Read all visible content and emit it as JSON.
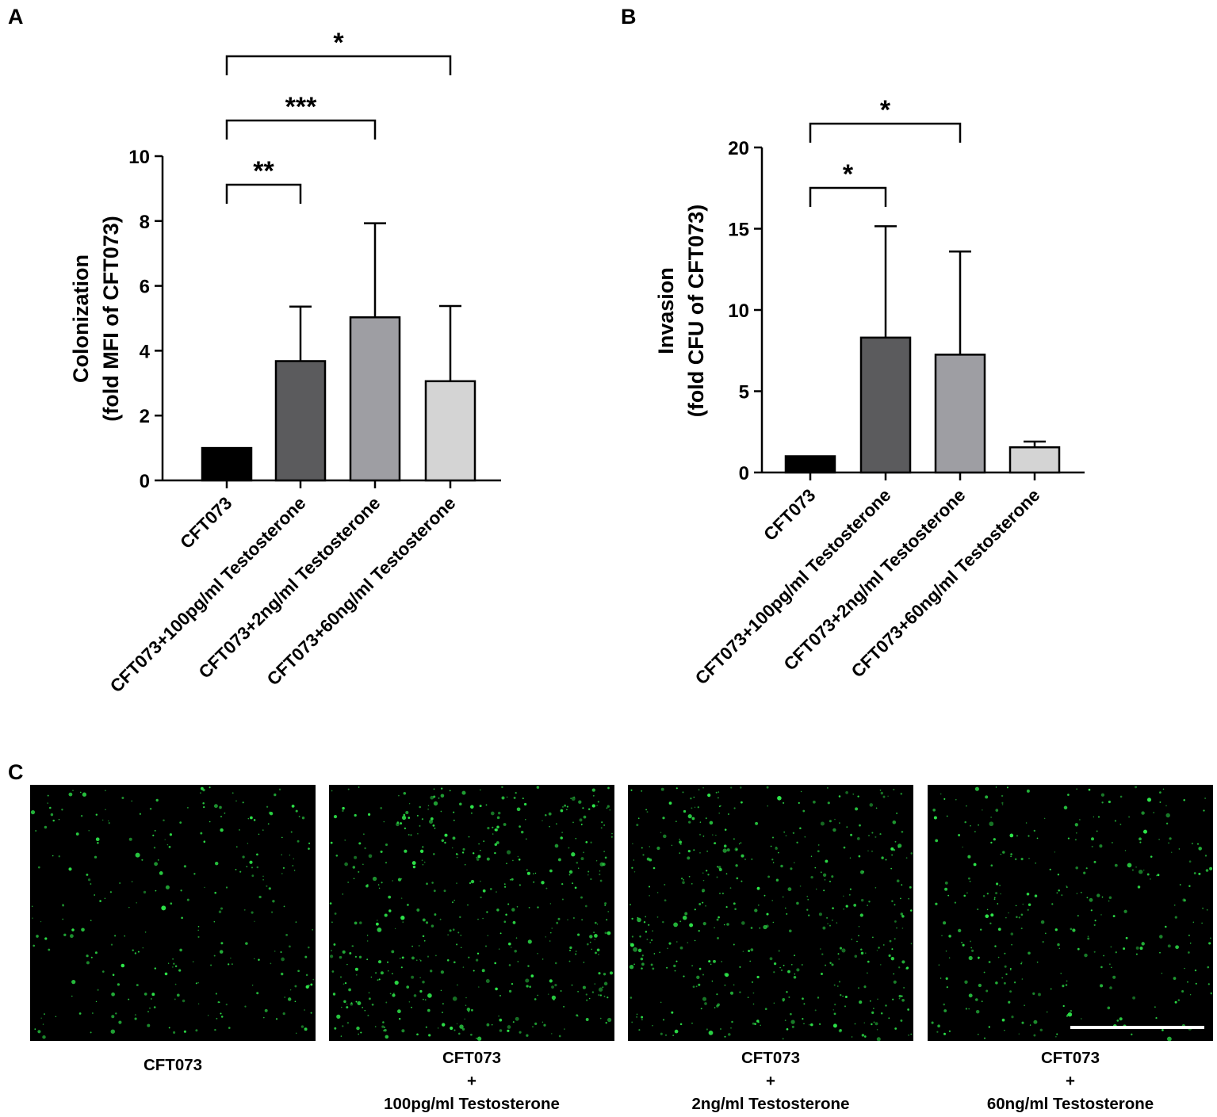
{
  "panels": {
    "A": "A",
    "B": "B",
    "C": "C"
  },
  "chart_data": [
    {
      "panel": "A",
      "type": "bar",
      "categories": [
        "CFT073",
        "CFT073+100pg/ml Testosterone",
        "CFT073+2ng/ml Testosterone",
        "CFT073+60ng/ml Testosterone"
      ],
      "values": [
        1.0,
        3.68,
        5.03,
        3.06
      ],
      "errors": [
        0.0,
        1.68,
        2.9,
        2.32
      ],
      "bar_colors": [
        "#000000",
        "#5b5b5d",
        "#9e9ea3",
        "#d4d4d4"
      ],
      "ylabel_lines": [
        "Colonization",
        "(fold MFI of CFT073)"
      ],
      "ylim": [
        0,
        10
      ],
      "yticks": [
        0,
        2,
        4,
        6,
        8,
        10
      ],
      "significance": [
        {
          "from": 0,
          "to": 1,
          "label": "**"
        },
        {
          "from": 0,
          "to": 2,
          "label": "***"
        },
        {
          "from": 0,
          "to": 3,
          "label": "*"
        }
      ]
    },
    {
      "panel": "B",
      "type": "bar",
      "categories": [
        "CFT073",
        "CFT073+100pg/ml Testosterone",
        "CFT073+2ng/ml Testosterone",
        "CFT073+60ng/ml Testosterone"
      ],
      "values": [
        1.0,
        8.3,
        7.25,
        1.55
      ],
      "errors": [
        0.0,
        6.85,
        6.35,
        0.35
      ],
      "bar_colors": [
        "#000000",
        "#5b5b5d",
        "#9e9ea3",
        "#d4d4d4"
      ],
      "ylabel_lines": [
        "Invasion",
        "(fold CFU of CFT073)"
      ],
      "ylim": [
        0,
        20
      ],
      "yticks": [
        0,
        5,
        10,
        15,
        20
      ],
      "significance": [
        {
          "from": 0,
          "to": 1,
          "label": "*"
        },
        {
          "from": 0,
          "to": 2,
          "label": "*"
        }
      ]
    }
  ],
  "micrographs": [
    {
      "caption_lines": [
        "CFT073"
      ],
      "density": 0.55
    },
    {
      "caption_lines": [
        "CFT073",
        "+",
        "100pg/ml Testosterone"
      ],
      "density": 1.0
    },
    {
      "caption_lines": [
        "CFT073",
        "+",
        "2ng/ml Testosterone"
      ],
      "density": 0.95
    },
    {
      "caption_lines": [
        "CFT073",
        "+",
        "60ng/ml Testosterone"
      ],
      "density": 0.65
    }
  ],
  "colors": {
    "fluorescence": "#2ee84a",
    "micrograph_bg": "#000000",
    "scale_bar": "#ffffff"
  }
}
